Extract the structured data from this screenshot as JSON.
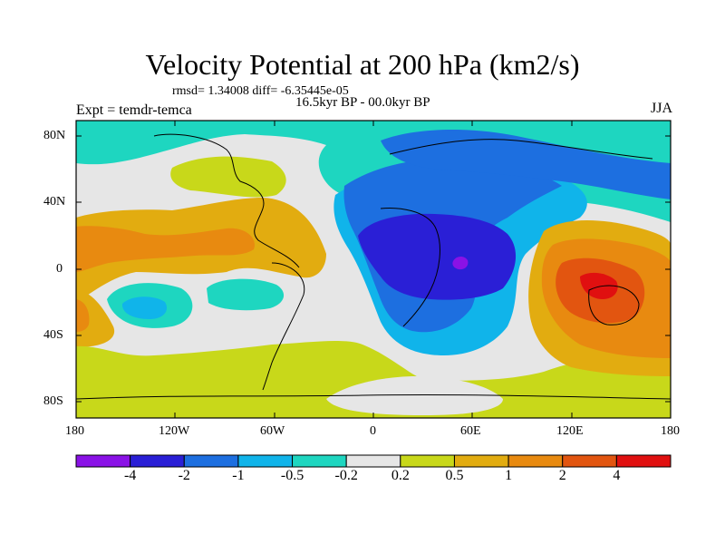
{
  "title": "Velocity Potential at 200 hPa (km2/s)",
  "stats_line": "rmsd= 1.34008 diff= -6.35445e-05",
  "period_line": "16.5kyr BP - 00.0kyr BP",
  "left_label": "Expt = temdr-temca",
  "right_label": "JJA",
  "lat_ticks": [
    "80N",
    "40N",
    "0",
    "40S",
    "80S"
  ],
  "lon_ticks": [
    "180",
    "120W",
    "60W",
    "0",
    "60E",
    "120E",
    "180"
  ],
  "colorbar": {
    "labels": [
      "-4",
      "-2",
      "-1",
      "-0.5",
      "-0.2",
      "0.2",
      "0.5",
      "1",
      "2",
      "4"
    ],
    "colors": [
      "#8a12e6",
      "#2a1fd6",
      "#1d6fe0",
      "#10b4ea",
      "#1ed6c0",
      "#e6e6e6",
      "#c8d81a",
      "#e2ac10",
      "#e88a10",
      "#e25510",
      "#e01010"
    ]
  },
  "icons": {
    "map": "world-map",
    "colorbar": "color-scale"
  }
}
